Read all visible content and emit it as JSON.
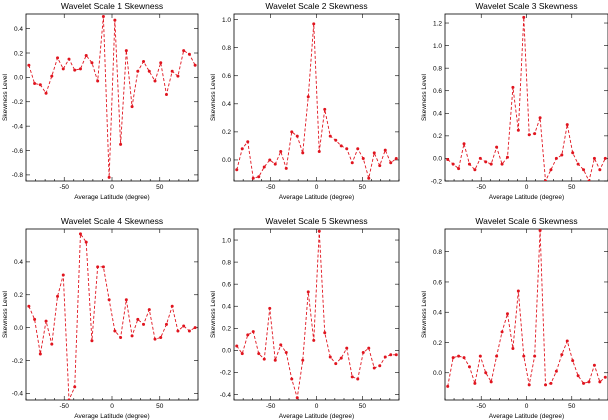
{
  "chart_data": [
    {
      "type": "line",
      "title": "Wavelet Scale 1 Skewness",
      "xlabel": "Average Latitude (degree)",
      "ylabel": "Skewness Level",
      "xlim": [
        -90,
        90
      ],
      "ylim": [
        -0.85,
        0.52
      ],
      "xticks": [
        -50,
        0,
        50
      ],
      "yticks": [
        -0.8,
        -0.6,
        -0.4,
        -0.2,
        0.0,
        0.2,
        0.4
      ],
      "color": "#e0141e",
      "x": [
        -87,
        -81,
        -75,
        -69,
        -63,
        -57,
        -51,
        -45,
        -39,
        -33,
        -27,
        -21,
        -15,
        -9,
        -3,
        3,
        9,
        15,
        21,
        27,
        33,
        39,
        45,
        51,
        57,
        63,
        69,
        75,
        81,
        87
      ],
      "y": [
        0.1,
        -0.05,
        -0.06,
        -0.13,
        0.01,
        0.16,
        0.07,
        0.15,
        0.06,
        0.07,
        0.18,
        0.12,
        -0.03,
        0.5,
        -0.82,
        0.47,
        -0.55,
        0.22,
        -0.24,
        0.05,
        0.13,
        0.05,
        -0.03,
        0.12,
        -0.14,
        0.05,
        0.01,
        0.22,
        0.19,
        0.1
      ]
    },
    {
      "type": "line",
      "title": "Wavelet Scale 2 Skewness",
      "xlabel": "Average Latitude (degree)",
      "ylabel": "Skewness Level",
      "xlim": [
        -90,
        90
      ],
      "ylim": [
        -0.15,
        1.04
      ],
      "xticks": [
        -50,
        0,
        50
      ],
      "yticks": [
        0.0,
        0.2,
        0.4,
        0.6,
        0.8,
        1.0
      ],
      "color": "#e0141e",
      "x": [
        -87,
        -81,
        -75,
        -69,
        -63,
        -57,
        -51,
        -45,
        -39,
        -33,
        -27,
        -21,
        -15,
        -9,
        -3,
        3,
        9,
        15,
        21,
        27,
        33,
        39,
        45,
        51,
        57,
        63,
        69,
        75,
        81,
        87
      ],
      "y": [
        -0.07,
        0.08,
        0.13,
        -0.13,
        -0.12,
        -0.05,
        0.0,
        -0.03,
        0.06,
        -0.06,
        0.2,
        0.17,
        0.05,
        0.45,
        0.97,
        0.06,
        0.36,
        0.17,
        0.14,
        0.1,
        0.08,
        -0.02,
        0.08,
        0.01,
        -0.13,
        0.05,
        -0.04,
        0.07,
        -0.02,
        0.01
      ]
    },
    {
      "type": "line",
      "title": "Wavelet Scale 3 Skewness",
      "xlabel": "Average Latitude (degree)",
      "ylabel": "Skewness Level",
      "xlim": [
        -90,
        90
      ],
      "ylim": [
        -0.2,
        1.28
      ],
      "xticks": [
        -50,
        0,
        50
      ],
      "yticks": [
        -0.2,
        0.0,
        0.2,
        0.4,
        0.6,
        0.8,
        1.0,
        1.2
      ],
      "color": "#e0141e",
      "x": [
        -87,
        -81,
        -75,
        -69,
        -63,
        -57,
        -51,
        -45,
        -39,
        -33,
        -27,
        -21,
        -15,
        -9,
        -3,
        3,
        9,
        15,
        21,
        27,
        33,
        39,
        45,
        51,
        57,
        63,
        69,
        75,
        81,
        87
      ],
      "y": [
        -0.01,
        -0.05,
        -0.09,
        0.13,
        -0.05,
        -0.1,
        0.0,
        -0.03,
        -0.05,
        0.1,
        -0.05,
        0.01,
        0.63,
        0.25,
        1.25,
        0.21,
        0.22,
        0.36,
        -0.2,
        -0.1,
        0.0,
        0.03,
        0.3,
        0.05,
        -0.05,
        -0.1,
        -0.2,
        0.0,
        -0.1,
        0.0
      ]
    },
    {
      "type": "line",
      "title": "Wavelet Scale 4 Skewness",
      "xlabel": "Average Latitude (degree)",
      "ylabel": "Skewness Level",
      "xlim": [
        -90,
        90
      ],
      "ylim": [
        -0.44,
        0.6
      ],
      "xticks": [
        -50,
        0,
        50
      ],
      "yticks": [
        -0.4,
        -0.2,
        0.0,
        0.2,
        0.4
      ],
      "color": "#e0141e",
      "x": [
        -87,
        -81,
        -75,
        -69,
        -63,
        -57,
        -51,
        -45,
        -39,
        -33,
        -27,
        -21,
        -15,
        -9,
        -3,
        3,
        9,
        15,
        21,
        27,
        33,
        39,
        45,
        51,
        57,
        63,
        69,
        75,
        81,
        87
      ],
      "y": [
        0.13,
        0.05,
        -0.16,
        0.04,
        -0.1,
        0.19,
        0.32,
        -0.44,
        -0.36,
        0.57,
        0.52,
        -0.08,
        0.37,
        0.37,
        0.17,
        -0.02,
        -0.06,
        0.17,
        -0.05,
        0.05,
        0.02,
        0.11,
        -0.07,
        -0.06,
        0.02,
        0.13,
        -0.02,
        0.01,
        -0.02,
        0.0
      ]
    },
    {
      "type": "line",
      "title": "Wavelet Scale 5 Skewness",
      "xlabel": "Average Latitude (degree)",
      "ylabel": "Skewness Level",
      "xlim": [
        -90,
        90
      ],
      "ylim": [
        -0.45,
        1.1
      ],
      "xticks": [
        -50,
        0,
        50
      ],
      "yticks": [
        -0.4,
        -0.2,
        0.0,
        0.2,
        0.4,
        0.6,
        0.8,
        1.0
      ],
      "color": "#e0141e",
      "x": [
        -87,
        -81,
        -75,
        -69,
        -63,
        -57,
        -51,
        -45,
        -39,
        -33,
        -27,
        -21,
        -15,
        -9,
        -3,
        3,
        9,
        15,
        21,
        27,
        33,
        39,
        45,
        51,
        57,
        63,
        69,
        75,
        81,
        87
      ],
      "y": [
        0.04,
        -0.03,
        0.14,
        0.17,
        -0.03,
        -0.08,
        0.38,
        -0.09,
        0.05,
        -0.02,
        -0.26,
        -0.43,
        -0.09,
        0.53,
        0.09,
        1.08,
        0.16,
        -0.06,
        -0.12,
        -0.07,
        0.02,
        -0.24,
        -0.26,
        -0.02,
        0.02,
        -0.16,
        -0.14,
        -0.06,
        -0.04,
        -0.04
      ]
    },
    {
      "type": "line",
      "title": "Wavelet Scale 6 Skewness",
      "xlabel": "Average Latitude (degree)",
      "ylabel": "Skewness Level",
      "xlim": [
        -90,
        90
      ],
      "ylim": [
        -0.18,
        0.95
      ],
      "xticks": [
        -50,
        0,
        50
      ],
      "yticks": [
        0.0,
        0.2,
        0.4,
        0.6,
        0.8
      ],
      "color": "#e0141e",
      "x": [
        -87,
        -81,
        -75,
        -69,
        -63,
        -57,
        -51,
        -45,
        -39,
        -33,
        -27,
        -21,
        -15,
        -9,
        -3,
        3,
        9,
        15,
        21,
        27,
        33,
        39,
        45,
        51,
        57,
        63,
        69,
        75,
        81,
        87
      ],
      "y": [
        -0.09,
        0.1,
        0.11,
        0.1,
        0.04,
        -0.07,
        0.11,
        0.0,
        -0.06,
        0.11,
        0.27,
        0.39,
        0.16,
        0.54,
        0.11,
        -0.08,
        0.11,
        0.94,
        -0.08,
        -0.07,
        0.01,
        0.12,
        0.21,
        0.08,
        -0.02,
        -0.07,
        -0.06,
        0.05,
        -0.06,
        -0.03
      ]
    }
  ]
}
